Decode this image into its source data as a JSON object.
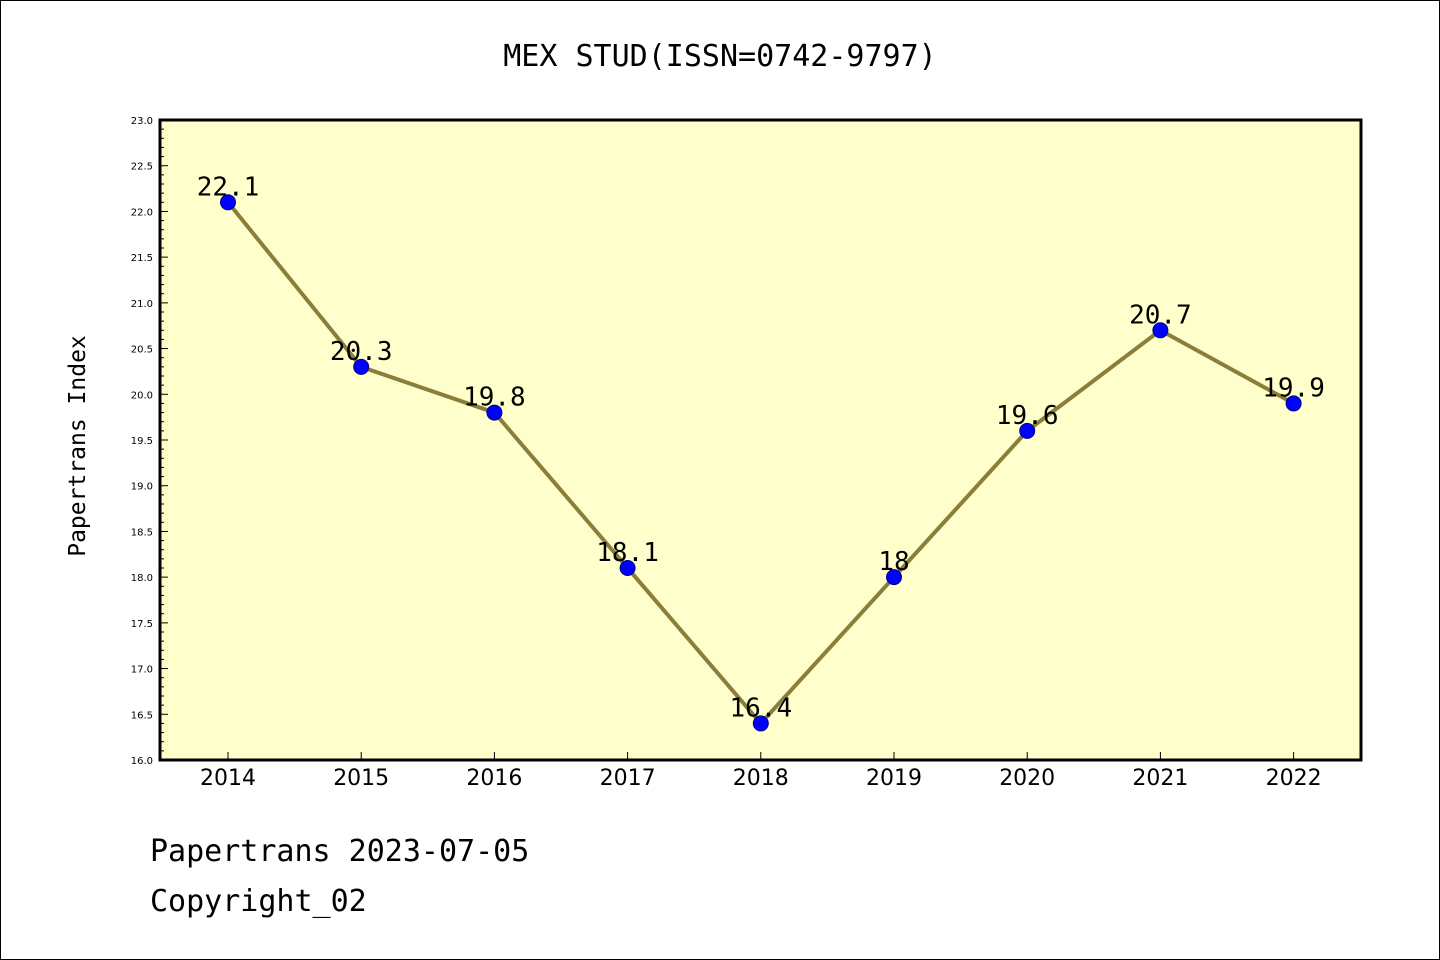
{
  "chart_data": {
    "type": "line",
    "title": "MEX STUD(ISSN=0742-9797)",
    "xlabel": "",
    "ylabel": "Papertrans Index",
    "categories": [
      "2014",
      "2015",
      "2016",
      "2017",
      "2018",
      "2019",
      "2020",
      "2021",
      "2022"
    ],
    "series": [
      {
        "values": [
          22.1,
          20.3,
          19.8,
          18.1,
          16.4,
          18.0,
          19.6,
          20.7,
          19.9
        ]
      }
    ],
    "data_labels": [
      "22.1",
      "20.3",
      "19.8",
      "18.1",
      "16.4",
      "18",
      "19.6",
      "20.7",
      "19.9"
    ],
    "ylim": [
      16.0,
      23.0
    ],
    "yticks": [
      "16.0",
      "16.5",
      "17.0",
      "17.5",
      "18.0",
      "18.5",
      "19.0",
      "19.5",
      "20.0",
      "20.5",
      "21.0",
      "21.5",
      "22.0",
      "22.5",
      "23.0"
    ],
    "grid": false,
    "legend": "none",
    "colors": {
      "plot_background": "#ffffcc",
      "line": "#8b7d3a",
      "marker_fill": "#0000ff",
      "marker_edge": "#00008b"
    }
  },
  "footer": {
    "line1": "Papertrans 2023-07-05",
    "line2": "Copyright_02"
  }
}
